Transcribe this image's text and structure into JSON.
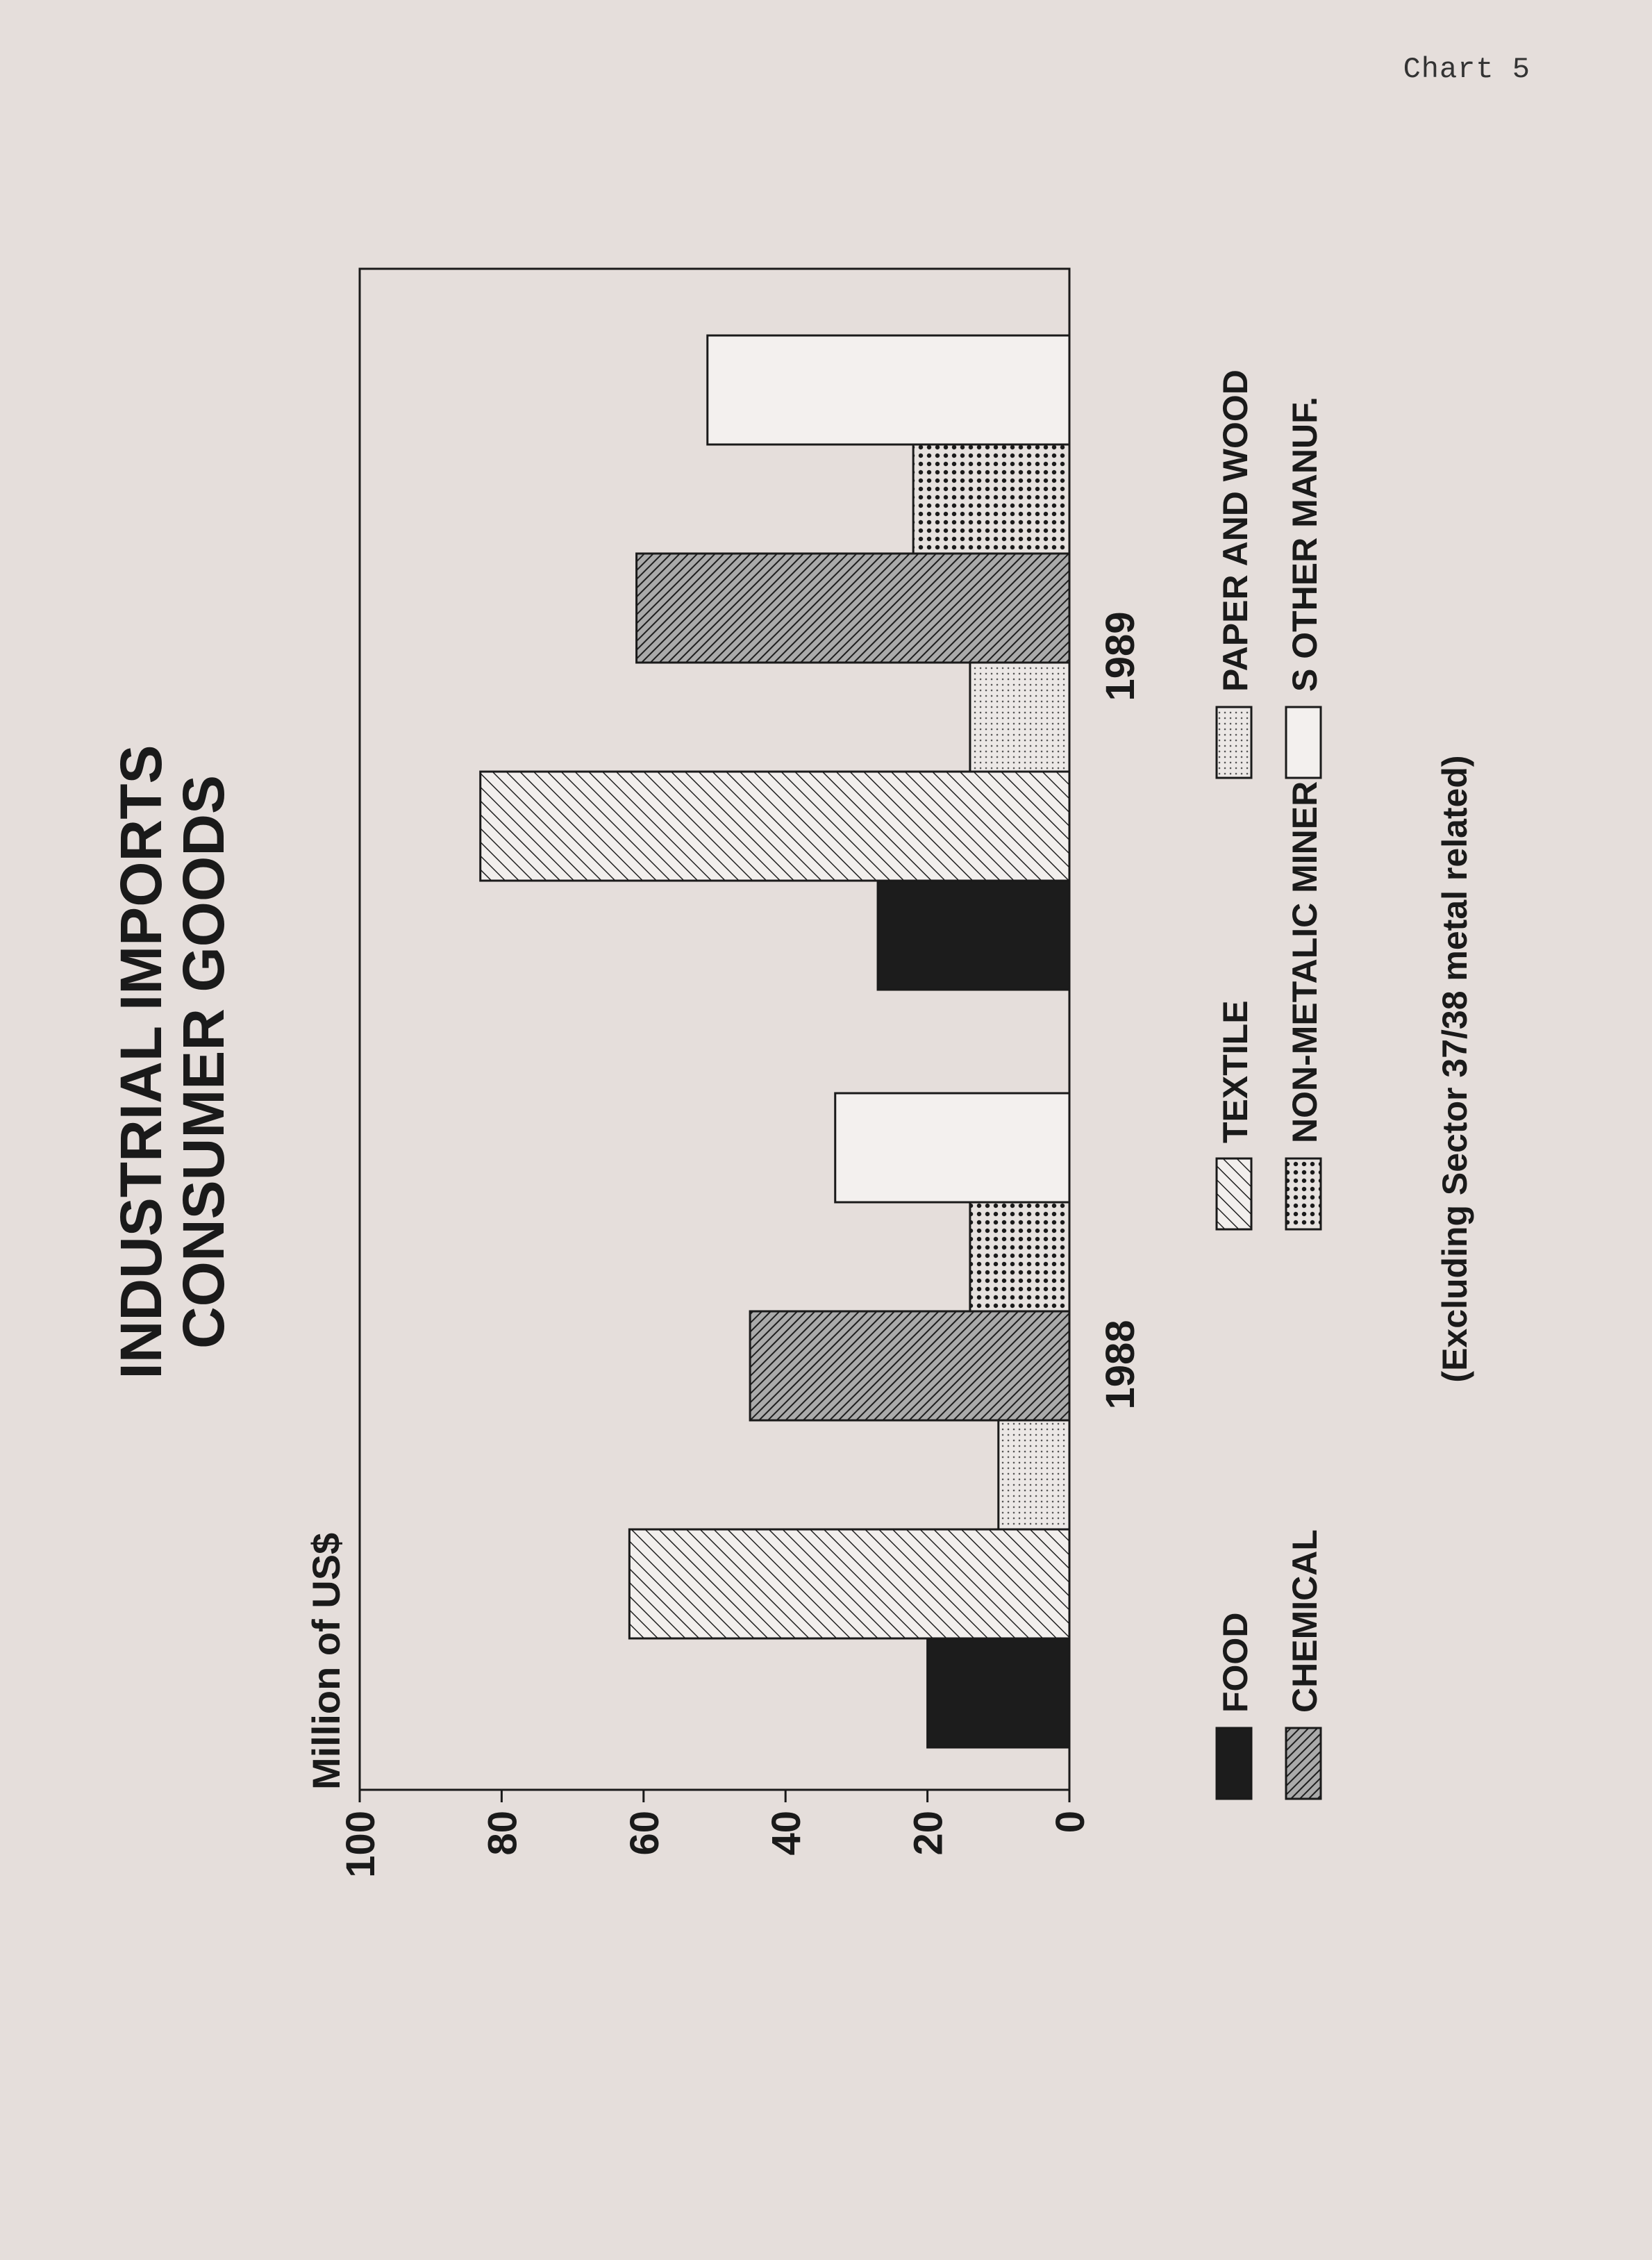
{
  "page_label": "Chart 5",
  "chart_data": {
    "type": "bar",
    "orientation": "rotated-90-counterclockwise",
    "title": [
      "INDUSTRIAL IMPORTS",
      "CONSUMER GOODS"
    ],
    "ylabel": "Million of US$",
    "xlabel": "",
    "ylim": [
      0,
      100
    ],
    "yticks": [
      "0",
      "20",
      "40",
      "60",
      "80",
      "100"
    ],
    "categories": [
      "1988",
      "1989"
    ],
    "series": [
      {
        "name": "FOOD",
        "values": [
          20,
          27
        ],
        "pattern": "solid-black"
      },
      {
        "name": "TEXTILE",
        "values": [
          62,
          83
        ],
        "pattern": "diagonal-hatch-light"
      },
      {
        "name": "PAPER AND WOOD",
        "values": [
          10,
          14
        ],
        "pattern": "fine-dots"
      },
      {
        "name": "CHEMICAL",
        "values": [
          45,
          61
        ],
        "pattern": "diagonal-hatch-dense"
      },
      {
        "name": "NON-METALIC MINERALS",
        "values": [
          14,
          22
        ],
        "pattern": "coarse-dots"
      },
      {
        "name": "OTHER MANUF.",
        "values": [
          33,
          51
        ],
        "pattern": "open-white"
      }
    ],
    "legend_placement": "bottom",
    "grid": false,
    "note": "(Excluding Sector 37/38 metal related)"
  },
  "legend": {
    "row1": [
      {
        "label": "FOOD",
        "pattern": "solid-black"
      },
      {
        "label": "TEXTILE",
        "pattern": "diagonal-hatch-light"
      },
      {
        "label": "PAPER AND WOOD",
        "pattern": "fine-dots"
      }
    ],
    "row2": [
      {
        "label": "CHEMICAL",
        "pattern": "diagonal-hatch-dense"
      },
      {
        "label": "NON-METALIC MINER",
        "pattern": "coarse-dots"
      },
      {
        "label": "S OTHER MANUF.",
        "pattern": "open-white"
      }
    ]
  }
}
